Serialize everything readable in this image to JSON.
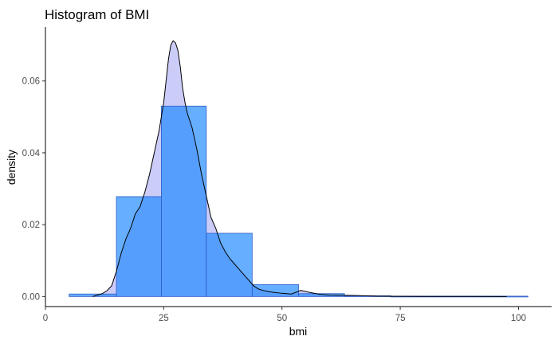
{
  "chart_data": {
    "type": "bar",
    "title": "Histogram of BMI",
    "xlabel": "bmi",
    "ylabel": "density",
    "xlim": [
      0,
      107
    ],
    "ylim": [
      -0.0028,
      0.075
    ],
    "grid": false,
    "x_ticks": [
      0,
      25,
      50,
      75,
      100
    ],
    "x_tick_labels": [
      "0",
      "25",
      "50",
      "75",
      "100"
    ],
    "y_ticks": [
      0,
      0.02,
      0.04,
      0.06
    ],
    "y_tick_labels": [
      "0.00",
      "0.02",
      "0.04",
      "0.06"
    ],
    "colors": {
      "bar_fill": "#1e88ff",
      "bar_stroke": "#2f5bc7",
      "density_fill": "#aaaaf5",
      "density_line": "#000000",
      "axis": "#000000"
    },
    "series": [
      {
        "type": "histogram",
        "bins": [
          {
            "x0": 5,
            "x1": 15,
            "density": 0.0007
          },
          {
            "x0": 15,
            "x1": 24.5,
            "density": 0.0278
          },
          {
            "x0": 24.5,
            "x1": 34,
            "density": 0.053
          },
          {
            "x0": 34,
            "x1": 43.7,
            "density": 0.0176
          },
          {
            "x0": 43.7,
            "x1": 53.5,
            "density": 0.0033
          },
          {
            "x0": 53.5,
            "x1": 63.2,
            "density": 0.0008
          },
          {
            "x0": 63.2,
            "x1": 73,
            "density": 0.0002
          },
          {
            "x0": 73,
            "x1": 82.5,
            "density": 0.0001
          },
          {
            "x0": 82.5,
            "x1": 92.3,
            "density": 0.0001
          },
          {
            "x0": 92.3,
            "x1": 102,
            "density": 0.0001
          }
        ]
      },
      {
        "type": "density",
        "x": [
          10,
          12,
          13,
          14,
          15,
          16,
          17,
          18,
          19,
          20,
          21,
          22,
          23,
          24,
          25,
          25.5,
          26,
          26.5,
          27,
          27.5,
          28,
          28.5,
          29,
          29.5,
          30,
          31,
          32,
          33,
          34,
          35,
          36,
          37,
          38,
          39,
          40,
          41,
          42,
          43,
          44,
          45,
          46,
          47,
          48,
          50,
          52,
          54,
          56,
          58,
          60,
          65,
          70,
          75,
          80,
          90,
          97.5
        ],
        "y": [
          0.0,
          0.0008,
          0.0016,
          0.003,
          0.007,
          0.012,
          0.016,
          0.019,
          0.023,
          0.025,
          0.029,
          0.034,
          0.04,
          0.046,
          0.054,
          0.06,
          0.066,
          0.07,
          0.0712,
          0.0706,
          0.0685,
          0.064,
          0.058,
          0.054,
          0.051,
          0.047,
          0.041,
          0.034,
          0.028,
          0.022,
          0.019,
          0.015,
          0.0125,
          0.0105,
          0.009,
          0.0075,
          0.006,
          0.0045,
          0.003,
          0.0021,
          0.0017,
          0.0014,
          0.0012,
          0.0009,
          0.0007,
          0.0017,
          0.0011,
          0.0006,
          0.0004,
          0.0003,
          0.0001,
          5e-05,
          3e-05,
          2e-05,
          1e-05
        ]
      }
    ]
  }
}
